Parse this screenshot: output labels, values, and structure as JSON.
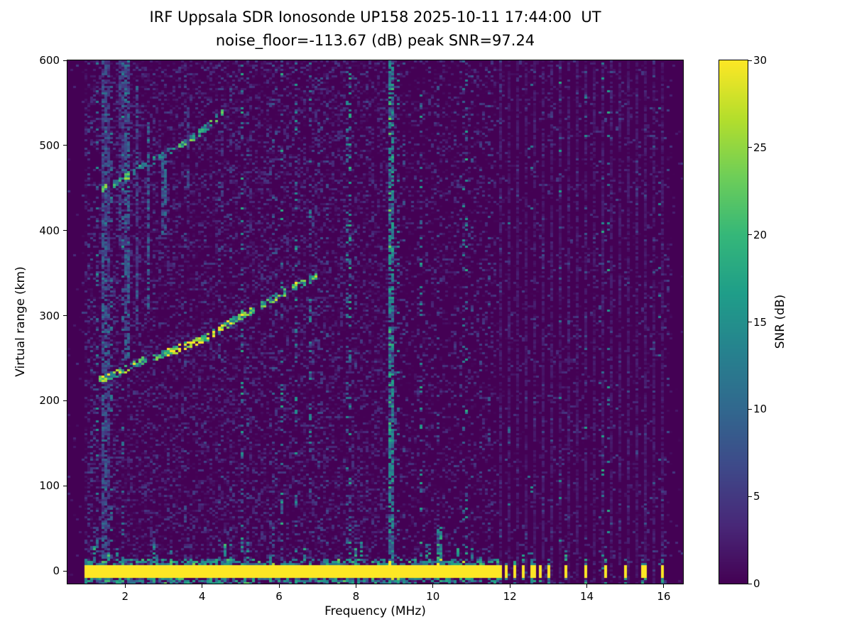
{
  "chart_data": {
    "type": "heatmap",
    "title": "IRF Uppsala SDR Ionosonde UP158 2025-10-11 17:44:00  UT",
    "subtitle": "noise_floor=-113.67 (dB) peak SNR=97.24",
    "xlabel": "Frequency (MHz)",
    "ylabel": "Virtual range (km)",
    "colorbar_label": "SNR (dB)",
    "colormap": "viridis",
    "xlim": [
      0.5,
      16.5
    ],
    "ylim": [
      -15,
      600
    ],
    "clim": [
      0,
      30
    ],
    "xticks": [
      2,
      4,
      6,
      8,
      10,
      12,
      14,
      16
    ],
    "yticks": [
      0,
      100,
      200,
      300,
      400,
      500,
      600
    ],
    "cticks": [
      0,
      5,
      10,
      15,
      20,
      25,
      30
    ],
    "features": {
      "ground_band": {
        "f_start": 0.95,
        "f_end": 11.6,
        "range_km": 0,
        "half_width_km": 8,
        "snr": 30
      },
      "ground_pulses": {
        "freqs": [
          11.72,
          11.9,
          12.13,
          12.35,
          12.58,
          12.8,
          13.02,
          13.45,
          13.95,
          14.47,
          14.97,
          15.47,
          15.97
        ],
        "width_mhz": 0.1,
        "snr": 30
      },
      "echo_trace_first_hop": {
        "snr": 18,
        "points": [
          [
            1.33,
            225
          ],
          [
            1.7,
            231
          ],
          [
            2.1,
            240
          ],
          [
            2.5,
            248
          ],
          [
            2.9,
            254
          ],
          [
            3.3,
            260
          ],
          [
            3.7,
            267
          ],
          [
            4.1,
            274
          ],
          [
            4.5,
            286
          ],
          [
            4.9,
            297
          ],
          [
            5.3,
            306
          ],
          [
            5.7,
            316
          ],
          [
            6.1,
            327
          ],
          [
            6.5,
            336
          ],
          [
            7.0,
            346
          ]
        ]
      },
      "echo_trace_second_hop": {
        "snr": 13,
        "points": [
          [
            1.35,
            447
          ],
          [
            1.75,
            456
          ],
          [
            2.15,
            466
          ],
          [
            2.55,
            477
          ],
          [
            2.95,
            488
          ],
          [
            3.35,
            498
          ],
          [
            3.75,
            509
          ],
          [
            4.1,
            521
          ],
          [
            4.4,
            533
          ],
          [
            4.65,
            545
          ]
        ]
      },
      "rfi_stripes": [
        {
          "f": 1.45,
          "y0": -15,
          "y1": 600,
          "snr": 7,
          "width_mhz": 0.1
        },
        {
          "f": 1.6,
          "y0": 0,
          "y1": 600,
          "snr": 5,
          "width_mhz": 0.08
        },
        {
          "f": 1.9,
          "y0": 380,
          "y1": 600,
          "snr": 4.5,
          "width_mhz": 0.08
        },
        {
          "f": 2.05,
          "y0": 250,
          "y1": 600,
          "snr": 8,
          "width_mhz": 0.1
        },
        {
          "f": 2.3,
          "y0": 280,
          "y1": 570,
          "snr": 5.5,
          "width_mhz": 0.08
        },
        {
          "f": 2.6,
          "y0": 300,
          "y1": 530,
          "snr": 8,
          "width_mhz": 0.1
        },
        {
          "f": 3.0,
          "y0": 390,
          "y1": 490,
          "snr": 9,
          "width_mhz": 0.1
        },
        {
          "f": 3.62,
          "y0": 440,
          "y1": 545,
          "snr": 5,
          "width_mhz": 0.08
        },
        {
          "f": 8.9,
          "y0": -15,
          "y1": 600,
          "snr": 13,
          "width_mhz": 0.09
        },
        {
          "f": 10.15,
          "y0": 5,
          "y1": 52,
          "snr": 12,
          "width_mhz": 0.12
        }
      ],
      "periodic_faint_columns": {
        "f_start": 11.72,
        "f_end": 16.1,
        "spacing": 0.224,
        "snr": 2.2
      }
    },
    "viridis_anchors": [
      "#440154",
      "#482878",
      "#3e4989",
      "#31688e",
      "#26828e",
      "#1f9e89",
      "#35b779",
      "#6ece58",
      "#b4de2c",
      "#fde725"
    ]
  }
}
